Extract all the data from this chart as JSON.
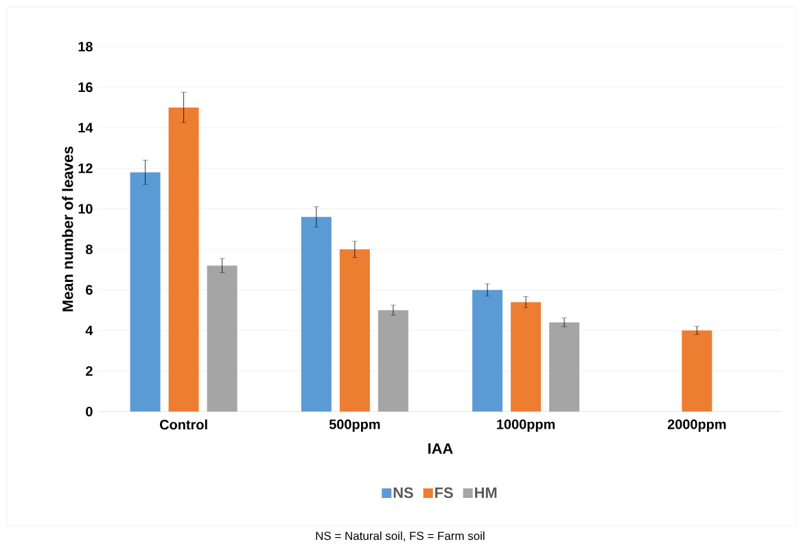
{
  "chart_data": {
    "type": "bar",
    "xlabel": "IAA",
    "ylabel": "Mean number of leaves",
    "categories": [
      "Control",
      "500ppm",
      "1000ppm",
      "2000ppm"
    ],
    "series": [
      {
        "name": "NS",
        "color": "#5b9bd5",
        "values": [
          11.8,
          9.6,
          6.0,
          0
        ],
        "errors": [
          0.6,
          0.5,
          0.3,
          null
        ]
      },
      {
        "name": "FS",
        "color": "#ed7d31",
        "values": [
          15.0,
          8.0,
          5.4,
          4.0
        ],
        "errors": [
          0.75,
          0.4,
          0.27,
          0.2
        ]
      },
      {
        "name": "HM",
        "color": "#a5a5a5",
        "values": [
          7.2,
          5.0,
          4.4,
          0
        ],
        "errors": [
          0.35,
          0.25,
          0.22,
          null
        ]
      }
    ],
    "ylim": [
      0,
      18
    ],
    "yticks": [
      0,
      2,
      4,
      6,
      8,
      10,
      12,
      14,
      16,
      18
    ],
    "grid": "y",
    "legend": "bottom",
    "annotations": [
      "NS = Natural soil, FS = Farm soil"
    ]
  }
}
